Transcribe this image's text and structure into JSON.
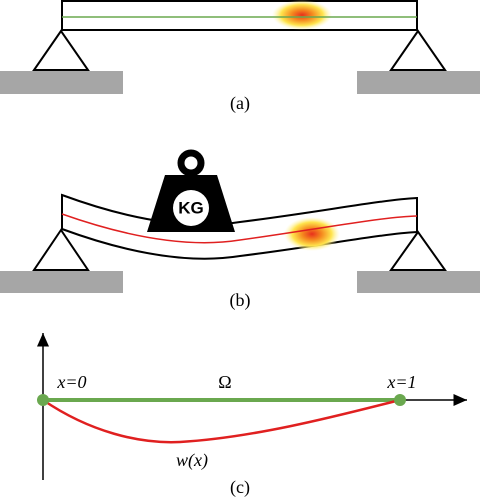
{
  "panels": {
    "a": {
      "label": "(a)"
    },
    "b": {
      "label": "(b)",
      "weight_label": "KG"
    },
    "c": {
      "label": "(c)",
      "left_point": "x=0",
      "domain": "Ω",
      "right_point": "x=1",
      "deflection": "w(x)"
    }
  }
}
